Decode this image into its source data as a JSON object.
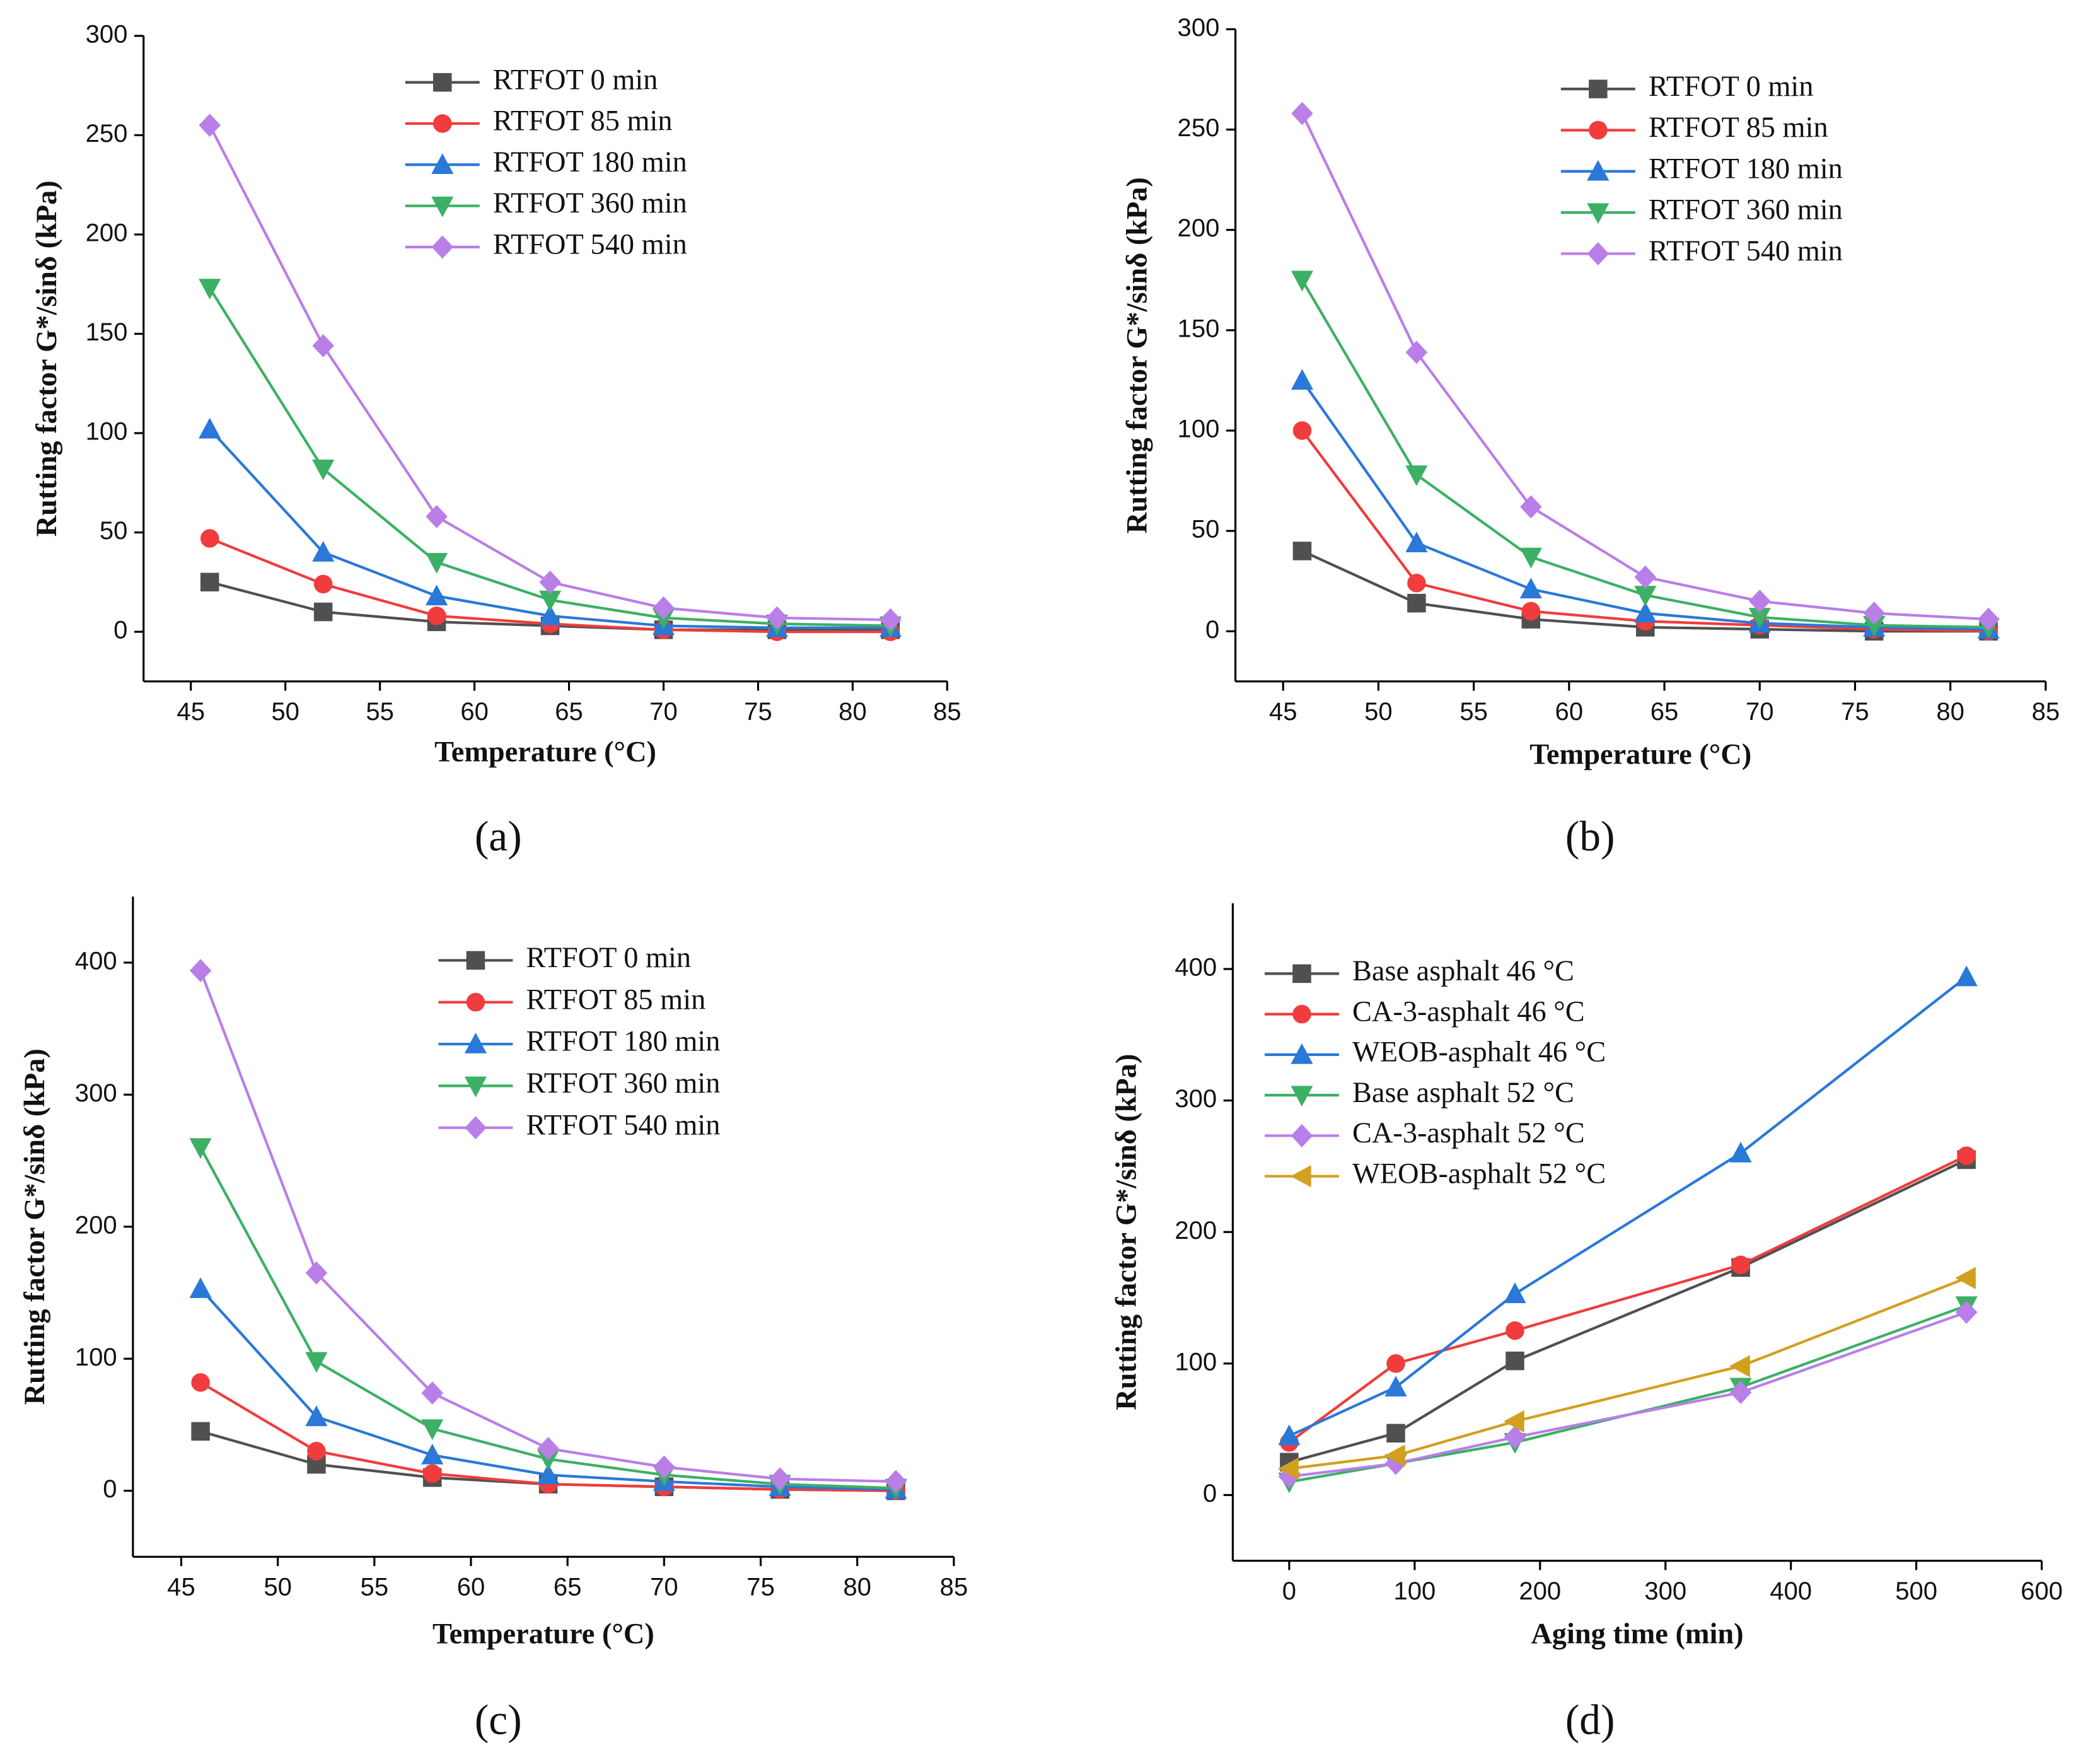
{
  "chart_data": [
    {
      "type": "line",
      "panel_label": "(a)",
      "xlabel": "Temperature (°C)",
      "ylabel": "Rutting factor G*/sinδ (kPa)",
      "x": [
        46,
        52,
        58,
        64,
        70,
        76,
        82
      ],
      "xlim": [
        42.5,
        85
      ],
      "xticks": [
        45,
        50,
        55,
        60,
        65,
        70,
        75,
        80,
        85
      ],
      "ylim": [
        -25,
        300
      ],
      "yticks": [
        0,
        50,
        100,
        150,
        200,
        250,
        300
      ],
      "series": [
        {
          "name": "RTFOT 0 min",
          "color": "#505050",
          "marker": "square",
          "values": [
            25,
            10,
            5,
            3,
            1,
            1,
            1
          ]
        },
        {
          "name": "RTFOT 85 min",
          "color": "#f03c3c",
          "marker": "circle",
          "values": [
            47,
            24,
            8,
            4,
            1,
            0,
            0
          ]
        },
        {
          "name": "RTFOT 180 min",
          "color": "#2a78d8",
          "marker": "triangle-up",
          "values": [
            102,
            40,
            18,
            8,
            3,
            2,
            2
          ]
        },
        {
          "name": "RTFOT 360 min",
          "color": "#3cb064",
          "marker": "triangle-down",
          "values": [
            173,
            82,
            35,
            16,
            7,
            4,
            3
          ]
        },
        {
          "name": "RTFOT 540 min",
          "color": "#b97ee8",
          "marker": "diamond",
          "values": [
            255,
            144,
            58,
            25,
            12,
            7,
            6
          ]
        }
      ]
    },
    {
      "type": "line",
      "panel_label": "(b)",
      "xlabel": "Temperature (°C)",
      "ylabel": "Rutting factor G*/sinδ (kPa)",
      "x": [
        46,
        52,
        58,
        64,
        70,
        76,
        82
      ],
      "xlim": [
        42.5,
        85
      ],
      "xticks": [
        45,
        50,
        55,
        60,
        65,
        70,
        75,
        80,
        85
      ],
      "ylim": [
        -25,
        300
      ],
      "yticks": [
        0,
        50,
        100,
        150,
        200,
        250,
        300
      ],
      "series": [
        {
          "name": "RTFOT 0 min",
          "color": "#505050",
          "marker": "square",
          "values": [
            40,
            14,
            6,
            2,
            1,
            0,
            0
          ]
        },
        {
          "name": "RTFOT 85 min",
          "color": "#f03c3c",
          "marker": "circle",
          "values": [
            100,
            24,
            10,
            5,
            3,
            1,
            0
          ]
        },
        {
          "name": "RTFOT 180 min",
          "color": "#2a78d8",
          "marker": "triangle-up",
          "values": [
            125,
            44,
            21,
            9,
            4,
            2,
            1
          ]
        },
        {
          "name": "RTFOT 360 min",
          "color": "#3cb064",
          "marker": "triangle-down",
          "values": [
            175,
            78,
            37,
            18,
            7,
            3,
            2
          ]
        },
        {
          "name": "RTFOT 540 min",
          "color": "#b97ee8",
          "marker": "diamond",
          "values": [
            258,
            139,
            62,
            27,
            15,
            9,
            6
          ]
        }
      ]
    },
    {
      "type": "line",
      "panel_label": "(c)",
      "xlabel": "Temperature (°C)",
      "ylabel": "Rutting factor G*/sinδ (kPa)",
      "x": [
        46,
        52,
        58,
        64,
        70,
        76,
        82
      ],
      "xlim": [
        42.5,
        85
      ],
      "xticks": [
        45,
        50,
        55,
        60,
        65,
        70,
        75,
        80,
        85
      ],
      "ylim": [
        -50,
        450
      ],
      "yticks": [
        0,
        100,
        200,
        300,
        400
      ],
      "series": [
        {
          "name": "RTFOT 0 min",
          "color": "#505050",
          "marker": "square",
          "values": [
            45,
            20,
            10,
            5,
            3,
            1,
            0
          ]
        },
        {
          "name": "RTFOT 85 min",
          "color": "#f03c3c",
          "marker": "circle",
          "values": [
            82,
            30,
            13,
            5,
            3,
            1,
            0
          ]
        },
        {
          "name": "RTFOT 180 min",
          "color": "#2a78d8",
          "marker": "triangle-up",
          "values": [
            153,
            56,
            27,
            12,
            7,
            3,
            1
          ]
        },
        {
          "name": "RTFOT 360 min",
          "color": "#3cb064",
          "marker": "triangle-down",
          "values": [
            260,
            98,
            47,
            24,
            12,
            5,
            2
          ]
        },
        {
          "name": "RTFOT 540 min",
          "color": "#b97ee8",
          "marker": "diamond",
          "values": [
            394,
            165,
            74,
            32,
            18,
            9,
            7
          ]
        }
      ]
    },
    {
      "type": "line",
      "panel_label": "(d)",
      "xlabel": "Aging time (min)",
      "ylabel": "Rutting factor G*/sinδ (kPa)",
      "x": [
        0,
        85,
        180,
        360,
        540
      ],
      "xlim": [
        -45,
        600
      ],
      "xticks": [
        0,
        100,
        200,
        300,
        400,
        500,
        600
      ],
      "ylim": [
        -50,
        450
      ],
      "yticks": [
        0,
        100,
        200,
        300,
        400
      ],
      "series": [
        {
          "name": "Base asphalt 46 °C",
          "color": "#505050",
          "marker": "square",
          "values": [
            25,
            47,
            102,
            173,
            255
          ]
        },
        {
          "name": "CA-3-asphalt 46 °C",
          "color": "#f03c3c",
          "marker": "circle",
          "values": [
            40,
            100,
            125,
            175,
            258
          ]
        },
        {
          "name": "WEOB-asphalt 46 °C",
          "color": "#2a78d8",
          "marker": "triangle-up",
          "values": [
            45,
            82,
            153,
            260,
            394
          ]
        },
        {
          "name": "Base asphalt 52 °C",
          "color": "#3cb064",
          "marker": "triangle-down",
          "values": [
            10,
            24,
            40,
            82,
            144
          ]
        },
        {
          "name": "CA-3-asphalt 52 °C",
          "color": "#b97ee8",
          "marker": "diamond",
          "values": [
            14,
            24,
            44,
            78,
            139
          ]
        },
        {
          "name": "WEOB-asphalt 52 °C",
          "color": "#d2a01e",
          "marker": "triangle-left",
          "values": [
            20,
            30,
            56,
            98,
            165
          ]
        }
      ]
    }
  ]
}
